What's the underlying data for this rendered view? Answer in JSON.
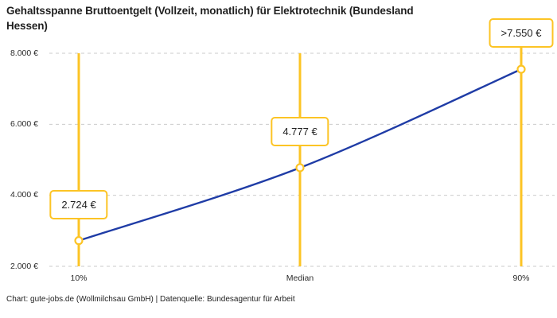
{
  "title": "Gehaltsspanne Bruttoentgelt (Vollzeit, monatlich) für Elektrotechnik (Bundesland\nHessen)",
  "footer": "Chart: gute-jobs.de (Wollmilchsau GmbH) | Datenquelle: Bundesagentur für Arbeit",
  "colors": {
    "accent_yellow": "#FCC425",
    "line_blue": "#1F3CA6",
    "grid_gray": "#CBCBCB",
    "text_dark": "#1F1F1F",
    "box_bg": "#FFFFFF"
  },
  "chart_data": {
    "type": "line",
    "title": "Gehaltsspanne Bruttoentgelt (Vollzeit, monatlich) für Elektrotechnik (Bundesland Hessen)",
    "categories": [
      "10%",
      "Median",
      "90%"
    ],
    "values": [
      2724,
      4777,
      7550
    ],
    "point_labels": [
      "2.724 €",
      "4.777 €",
      ">7.550 €"
    ],
    "y_ticks": [
      2000,
      4000,
      6000,
      8000
    ],
    "y_tick_labels": [
      "2.000 €",
      "4.000 €",
      "6.000 €",
      "8.000 €"
    ],
    "ylim": [
      2000,
      8000
    ],
    "xlabel": "",
    "ylabel": "",
    "grid": "horizontal-dashed",
    "legend": "none",
    "annotations": "yellow vertical guide line at each percentile; value shown in yellow-bordered white box above each data point; markers are white circles with yellow ring"
  }
}
